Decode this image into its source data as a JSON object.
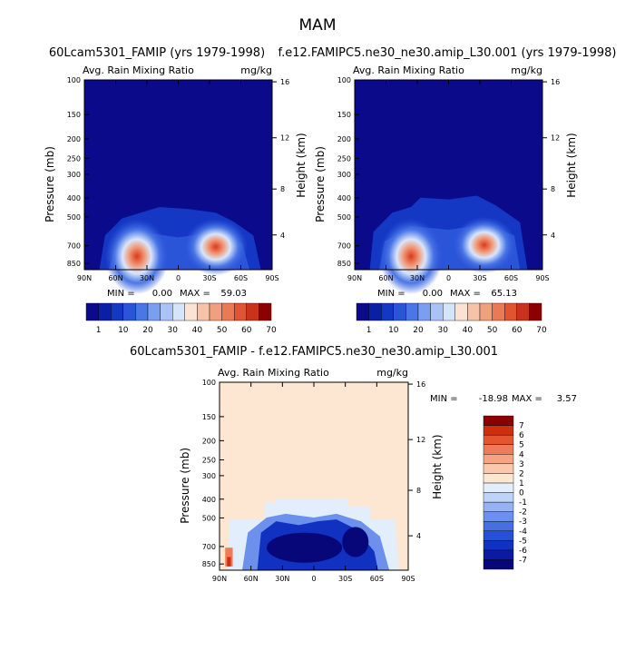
{
  "title": "MAM",
  "chart_data": [
    {
      "type": "heatmap",
      "case_title": "60Lcam5301_FAMIP (yrs 1979-1998)",
      "variable": "Avg. Rain Mixing Ratio",
      "units": "mg/kg",
      "ylabel": "Pressure (mb)",
      "y2label": "Height (km)",
      "x_ticks": [
        "90N",
        "60N",
        "30N",
        "0",
        "30S",
        "60S",
        "90S"
      ],
      "y_ticks": [
        "100",
        "150",
        "200",
        "250",
        "300",
        "400",
        "500",
        "700",
        "850"
      ],
      "y2_ticks": [
        "16",
        "12",
        "8",
        "4"
      ],
      "min_label": "MIN =",
      "min": "0.00",
      "max_label": "MAX =",
      "max": "59.03",
      "colorbar_levels": [
        "1",
        "10",
        "20",
        "30",
        "40",
        "50",
        "60",
        "70"
      ],
      "features": [
        {
          "lat": -42,
          "p": 760,
          "value": 59
        },
        {
          "lat": 38,
          "p": 730,
          "value": 50
        }
      ]
    },
    {
      "type": "heatmap",
      "case_title": "f.e12.FAMIPC5.ne30_ne30.amip_L30.001 (yrs 1979-1998)",
      "variable": "Avg. Rain Mixing Ratio",
      "units": "mg/kg",
      "ylabel": "Pressure (mb)",
      "y2label": "Height (km)",
      "x_ticks": [
        "90N",
        "60N",
        "30N",
        "0",
        "30S",
        "60S",
        "90S"
      ],
      "y_ticks": [
        "100",
        "150",
        "200",
        "250",
        "300",
        "400",
        "500",
        "700",
        "850"
      ],
      "y2_ticks": [
        "16",
        "12",
        "8",
        "4"
      ],
      "min_label": "MIN =",
      "min": "0.00",
      "max_label": "MAX =",
      "max": "65.13",
      "colorbar_levels": [
        "1",
        "10",
        "20",
        "30",
        "40",
        "50",
        "60",
        "70"
      ],
      "features": [
        {
          "lat": -42,
          "p": 760,
          "value": 65
        },
        {
          "lat": 35,
          "p": 710,
          "value": 62
        }
      ]
    },
    {
      "type": "heatmap",
      "case_title": "60Lcam5301_FAMIP - f.e12.FAMIPC5.ne30_ne30.amip_L30.001",
      "variable": "Avg. Rain Mixing Ratio",
      "units": "mg/kg",
      "ylabel": "Pressure (mb)",
      "y2label": "Height (km)",
      "x_ticks": [
        "90N",
        "60N",
        "30N",
        "0",
        "30S",
        "60S",
        "90S"
      ],
      "y_ticks": [
        "100",
        "150",
        "200",
        "250",
        "300",
        "400",
        "500",
        "700",
        "850"
      ],
      "y2_ticks": [
        "16",
        "12",
        "8",
        "4"
      ],
      "min_label": "MIN =",
      "min": "-18.98",
      "max_label": "MAX =",
      "max": "3.57",
      "colorbar_levels": [
        "7",
        "6",
        "5",
        "4",
        "3",
        "2",
        "1",
        "0",
        "-1",
        "-2",
        "-3",
        "-4",
        "-5",
        "-6",
        "-7"
      ]
    }
  ],
  "colors": {
    "abs_scale": [
      "#0a0a8a",
      "#0b1fa6",
      "#1437c4",
      "#2b55d9",
      "#4b77e6",
      "#7a9ef0",
      "#a9c3f7",
      "#d6e4fb",
      "#fbe2d2",
      "#f6c3a8",
      "#f1a07e",
      "#ea7a55",
      "#df5433",
      "#c9321b",
      "#8b0000"
    ],
    "diff_scale": [
      "#07077a",
      "#0b1aa0",
      "#1132c0",
      "#2650d6",
      "#476fe2",
      "#6c90ec",
      "#94b2f4",
      "#bfd3f9",
      "#e3eefd",
      "#fde6d2",
      "#f9c8ad",
      "#f4a383",
      "#ee7c58",
      "#e4552f",
      "#cf2e10",
      "#8b0000"
    ]
  }
}
